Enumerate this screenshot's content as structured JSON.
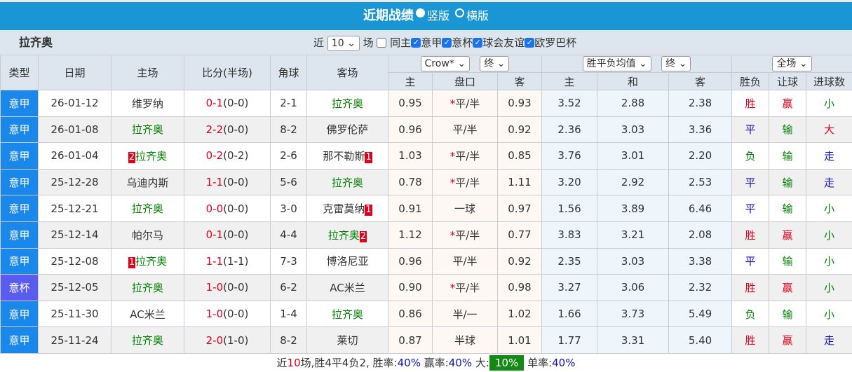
{
  "title": "近期战绩",
  "view_options": [
    "竖版",
    "横版"
  ],
  "team": "拉齐奥",
  "filters": {
    "recent_label": "近",
    "recent_value": "10",
    "games_label": "场",
    "same_home": "同主",
    "leagues": [
      "意甲",
      "意杯",
      "球会友谊",
      "欧罗巴杯"
    ]
  },
  "headers": {
    "type": "类型",
    "date": "日期",
    "home": "主场",
    "score": "比分(半场)",
    "corner": "角球",
    "away": "客场",
    "asian_company": "Crow*",
    "asian_stage": "终",
    "euro_type": "胜平负均值",
    "euro_stage": "终",
    "period": "全场",
    "a_home": "主",
    "a_line": "盘口",
    "a_away": "客",
    "e_home": "主",
    "e_draw": "和",
    "e_away": "客",
    "wl": "胜负",
    "hc": "让球",
    "goals": "进球数"
  },
  "rows": [
    {
      "type": "意甲",
      "date": "26-01-12",
      "home": "维罗纳",
      "home_hl": false,
      "home_badge": "",
      "ft": "0-1",
      "ht": "(0-0)",
      "corner": "2-1",
      "away": "拉齐奥",
      "away_hl": true,
      "away_badge": "",
      "ah": "0.95",
      "star": "*",
      "line": "平/半",
      "aa": "0.93",
      "eh": "3.52",
      "ed": "2.88",
      "ea": "2.38",
      "wl": "胜",
      "hc": "赢",
      "goals": "小"
    },
    {
      "type": "意甲",
      "date": "26-01-08",
      "home": "拉齐奥",
      "home_hl": true,
      "home_badge": "",
      "ft": "2-2",
      "ht": "(0-0)",
      "corner": "8-2",
      "away": "佛罗伦萨",
      "away_hl": false,
      "away_badge": "",
      "ah": "0.96",
      "star": "",
      "line": "平/半",
      "aa": "0.92",
      "eh": "2.36",
      "ed": "3.03",
      "ea": "3.36",
      "wl": "平",
      "hc": "输",
      "goals": "大"
    },
    {
      "type": "意甲",
      "date": "26-01-04",
      "home": "拉齐奥",
      "home_hl": true,
      "home_badge": "2",
      "ft": "0-2",
      "ht": "(0-2)",
      "corner": "2-6",
      "away": "那不勒斯",
      "away_hl": false,
      "away_badge": "1",
      "ah": "1.03",
      "star": "*",
      "line": "平/半",
      "aa": "0.85",
      "eh": "3.76",
      "ed": "3.01",
      "ea": "2.20",
      "wl": "负",
      "hc": "输",
      "goals": "走"
    },
    {
      "type": "意甲",
      "date": "25-12-28",
      "home": "乌迪内斯",
      "home_hl": false,
      "home_badge": "",
      "ft": "1-1",
      "ht": "(0-0)",
      "corner": "5-6",
      "away": "拉齐奥",
      "away_hl": true,
      "away_badge": "",
      "ah": "0.78",
      "star": "*",
      "line": "平/半",
      "aa": "1.11",
      "eh": "3.20",
      "ed": "2.92",
      "ea": "2.53",
      "wl": "平",
      "hc": "输",
      "goals": "走"
    },
    {
      "type": "意甲",
      "date": "25-12-21",
      "home": "拉齐奥",
      "home_hl": true,
      "home_badge": "",
      "ft": "0-0",
      "ht": "(0-0)",
      "corner": "3-0",
      "away": "克雷莫纳",
      "away_hl": false,
      "away_badge": "1",
      "ah": "0.91",
      "star": "",
      "line": "一球",
      "aa": "0.97",
      "eh": "1.56",
      "ed": "3.89",
      "ea": "6.46",
      "wl": "平",
      "hc": "输",
      "goals": "小"
    },
    {
      "type": "意甲",
      "date": "25-12-14",
      "home": "帕尔马",
      "home_hl": false,
      "home_badge": "",
      "ft": "0-1",
      "ht": "(0-0)",
      "corner": "4-4",
      "away": "拉齐奥",
      "away_hl": true,
      "away_badge": "2",
      "ah": "1.12",
      "star": "*",
      "line": "平/半",
      "aa": "0.77",
      "eh": "3.83",
      "ed": "3.21",
      "ea": "2.08",
      "wl": "胜",
      "hc": "赢",
      "goals": "小"
    },
    {
      "type": "意甲",
      "date": "25-12-08",
      "home": "拉齐奥",
      "home_hl": true,
      "home_badge": "1",
      "ft": "1-1",
      "ht": "(1-1)",
      "corner": "7-3",
      "away": "博洛尼亚",
      "away_hl": false,
      "away_badge": "",
      "ah": "0.96",
      "star": "",
      "line": "平/半",
      "aa": "0.92",
      "eh": "2.35",
      "ed": "3.03",
      "ea": "3.38",
      "wl": "平",
      "hc": "输",
      "goals": "小"
    },
    {
      "type": "意杯",
      "date": "25-12-05",
      "home": "拉齐奥",
      "home_hl": true,
      "home_badge": "",
      "ft": "1-0",
      "ht": "(0-0)",
      "corner": "6-2",
      "away": "AC米兰",
      "away_hl": false,
      "away_badge": "",
      "ah": "0.90",
      "star": "*",
      "line": "平/半",
      "aa": "0.98",
      "eh": "3.27",
      "ed": "3.06",
      "ea": "2.32",
      "wl": "胜",
      "hc": "赢",
      "goals": "小"
    },
    {
      "type": "意甲",
      "date": "25-11-30",
      "home": "AC米兰",
      "home_hl": false,
      "home_badge": "",
      "ft": "1-0",
      "ht": "(0-0)",
      "corner": "1-4",
      "away": "拉齐奥",
      "away_hl": true,
      "away_badge": "",
      "ah": "0.86",
      "star": "",
      "line": "半/一",
      "aa": "1.02",
      "eh": "1.66",
      "ed": "3.73",
      "ea": "5.49",
      "wl": "负",
      "hc": "输",
      "goals": "小"
    },
    {
      "type": "意甲",
      "date": "25-11-24",
      "home": "拉齐奥",
      "home_hl": true,
      "home_badge": "",
      "ft": "2-0",
      "ht": "(1-0)",
      "corner": "8-2",
      "away": "莱切",
      "away_hl": false,
      "away_badge": "",
      "ah": "0.87",
      "star": "",
      "line": "半球",
      "aa": "1.01",
      "eh": "1.77",
      "ed": "3.31",
      "ea": "5.40",
      "wl": "胜",
      "hc": "赢",
      "goals": "走"
    }
  ],
  "footer": {
    "p1": "近",
    "n": "10",
    "p2": "场,胜4平4负2, 胜率:",
    "win_rate": "40%",
    "p3": " 赢率:",
    "cover_rate": "40%",
    "p4": " 大:",
    "over_rate": "10%",
    "p5": " 单率:",
    "odd_rate": "40%"
  },
  "colors": {
    "title_bar": "#1b96d4",
    "league": "#1a87ea",
    "cup": "#5a5cf0",
    "highlight_team": "#008000",
    "win": "#e0001b",
    "draw": "#1010c0",
    "loss": "#008000",
    "over_badge": "#138a13"
  }
}
